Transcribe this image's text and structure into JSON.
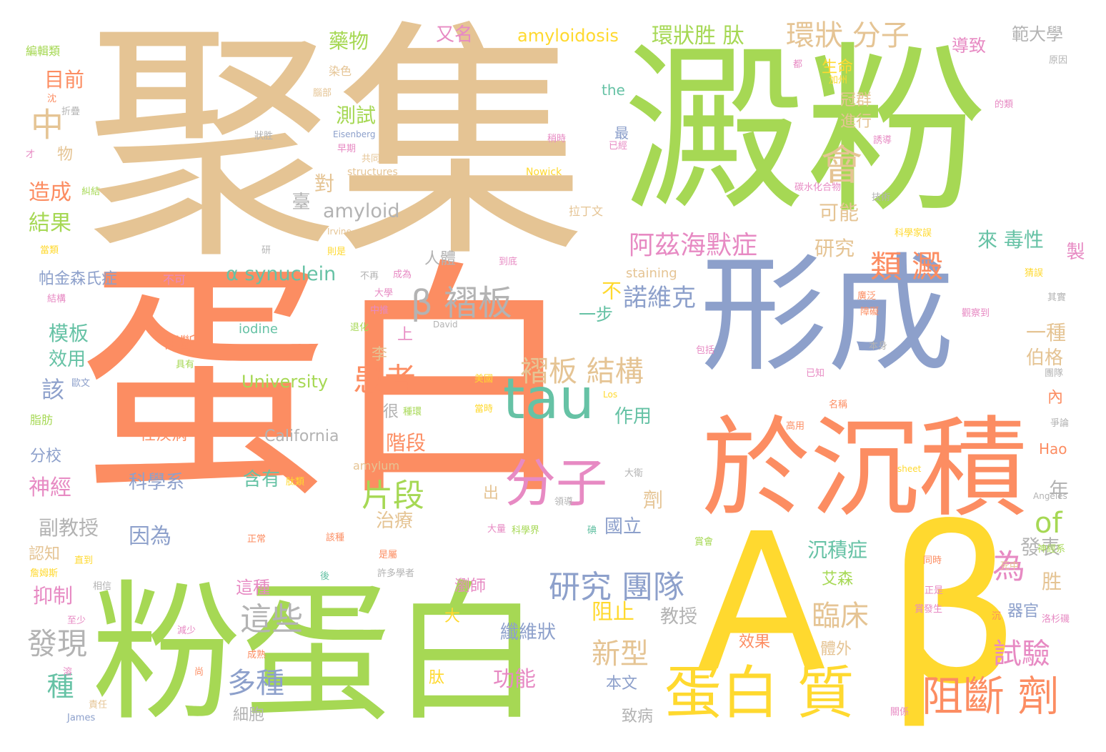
{
  "palette": {
    "orange": "#fc8d62",
    "green": "#a6d854",
    "tan": "#e5c494",
    "blue": "#8da0cb",
    "pink": "#e78ac3",
    "yellow": "#ffd92f",
    "teal": "#66c2a5",
    "gray": "#b3b3b3",
    "background": "#ffffff"
  },
  "words": {
    "w001": "聚集",
    "w002": "澱粉",
    "w003": "蛋白",
    "w004": "形成",
    "w005": "粉蛋白",
    "w006": "於沉積",
    "w007": "A",
    "w008": "β",
    "w009": "蛋白 質",
    "w010": "tau",
    "w011": "分子",
    "w012": "阻斷 劑",
    "w013": "阿茲海默症",
    "w014": "β 褶板",
    "w015": "褶板 結構",
    "w016": "研究 團隊",
    "w017": "諾維克",
    "w018": "類 澱",
    "w019": "環狀 分子",
    "w020": "環狀胜 肽",
    "w021": "患者",
    "w022": "片段",
    "w023": "α synuclein",
    "w024": "amyloid",
    "w025": "amyloidosis",
    "w026": "會",
    "w027": "為",
    "w028": "of",
    "w029": "中",
    "w030": "纖維狀",
    "w031": "功能",
    "w032": "多種",
    "w033": "新型",
    "w034": "這些",
    "w035": "發現",
    "w036": "試驗",
    "w037": "臨床",
    "w038": "沉積症",
    "w039": "種",
    "w040": "造成",
    "w041": "結果",
    "w042": "測試",
    "w043": "藥物",
    "w044": "又名",
    "w045": "目前",
    "w046": "帕金森氏症",
    "w047": "模板",
    "w048": "效用",
    "w049": "該",
    "w050": "分校",
    "w051": "神經",
    "w052": "副教授",
    "w053": "認知",
    "w054": "抑制",
    "w055": "University",
    "w056": "California",
    "w057": "iodine",
    "w058": "staining",
    "w059": "amylum",
    "w060": "the",
    "w061": "科學系",
    "w062": "含有",
    "w063": "因為",
    "w064": "治療",
    "w065": "階段",
    "w066": "研究",
    "w067": "來 毒性",
    "w068": "可能",
    "w069": "對",
    "w070": "臺",
    "w071": "不",
    "w072": "一步",
    "w073": "一種",
    "w074": "伯格",
    "w075": "年",
    "w076": "發表",
    "w077": "艾森",
    "w078": "器官",
    "w079": "胜",
    "w080": "阻止",
    "w081": "教授",
    "w082": "本文",
    "w083": "致病",
    "w084": "國立",
    "w085": "作用",
    "w086": "劑",
    "w087": "生命",
    "w088": "冠群",
    "w089": "進行",
    "w090": "導致",
    "w091": "範大學",
    "w092": "製",
    "w093": "Hao",
    "w094": "這種",
    "w095": "瀏師",
    "w096": "效果",
    "w097": "體外",
    "w098": "細胞",
    "w099": "人體",
    "w100": "上",
    "w101": "李",
    "w102": "阻斷",
    "w103": "性疾病",
    "w104": "很",
    "w105": "內",
    "w106": "出",
    "w107": "大",
    "w108": "肽",
    "w109": "物",
    "w110": "最",
    "w111": "拉丁文",
    "w112": "Eisenberg",
    "w113": "structures",
    "w114": "Nowick",
    "w115": "David",
    "w116": "Los",
    "w117": "sheet",
    "w118": "Angeles",
    "w119": "Irvine",
    "w120": "James",
    "w121": "編輯類",
    "w122": "染色",
    "w123": "腦部",
    "w124": "原因",
    "w125": "折疊",
    "w126": "才",
    "w127": "狀胜",
    "w128": "共同",
    "w129": "早期",
    "w130": "稍時",
    "w131": "已經",
    "w132": "碳水化合物",
    "w133": "技術",
    "w134": "誘導",
    "w135": "的類",
    "w136": "都",
    "w137": "加州",
    "w138": "糾結",
    "w139": "沈",
    "w140": "當類",
    "w141": "研",
    "w142": "則是",
    "w143": "到底",
    "w144": "不可",
    "w145": "不再",
    "w146": "成為",
    "w147": "大學",
    "w148": "中推",
    "w149": "退化",
    "w150": "結構",
    "w151": "科學家誤",
    "w152": "猜誤",
    "w153": "廣泛",
    "w154": "障礙",
    "w155": "觀察到",
    "w156": "其實",
    "w157": "本身",
    "w158": "包括",
    "w159": "已知",
    "w160": "團隊",
    "w161": "歐文",
    "w162": "具有",
    "w163": "美國",
    "w164": "當時",
    "w165": "種環",
    "w166": "名稱",
    "w167": "爭論",
    "w168": "脂肪",
    "w169": "肽類",
    "w170": "大衛",
    "w171": "領導",
    "w172": "高用",
    "w173": "大量",
    "w174": "科學界",
    "w175": "碘",
    "w176": "正常",
    "w177": "該種",
    "w178": "賞會",
    "w179": "直到",
    "w180": "詹姆斯",
    "w181": "是屬",
    "w182": "後",
    "w183": "相信",
    "w184": "許多學者",
    "w185": "同時",
    "w186": "神經系",
    "w187": "死中",
    "w188": "至少",
    "w189": "減少",
    "w190": "正是",
    "w191": "賞發生",
    "w192": "洛杉磯",
    "w193": "沉",
    "w194": "成熟",
    "w195": "尚",
    "w196": "溶",
    "w197": "責任",
    "w198": "關係"
  }
}
